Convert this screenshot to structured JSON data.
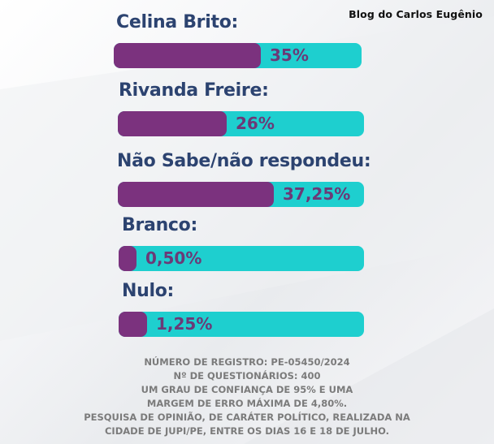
{
  "watermark": "Blog do Carlos Eugênio",
  "colors": {
    "fill": "#7b327e",
    "track": "#1ecfcf",
    "label": "#2c4370",
    "value": "#6b3a77",
    "footer": "#7b7b7b"
  },
  "chart_data": {
    "type": "bar",
    "orientation": "horizontal",
    "categories": [
      "Celina Brito:",
      "Rivanda Freire:",
      "Não Sabe/não respondeu:",
      "Branco:",
      "Nulo:"
    ],
    "values": [
      35,
      26,
      37.25,
      0.5,
      1.25
    ],
    "value_labels": [
      "35%",
      "26%",
      "37,25%",
      "0,50%",
      "1,25%"
    ],
    "xlim": [
      0,
      100
    ],
    "grid": false
  },
  "footer_lines": [
    "NÚMERO DE REGISTRO: PE-05450/2024",
    "Nº DE QUESTIONÁRIOS: 400",
    "UM GRAU DE CONFIANÇA DE 95% E UMA",
    "MARGEM DE ERRO MÁXIMA DE 4,80%.",
    "PESQUISA DE OPINIÃO, DE CARÁTER POLÍTICO, REALIZADA NA",
    "CIDADE DE JUPI/PE, ENTRE OS DIAS 16 E 18 DE JULHO."
  ]
}
